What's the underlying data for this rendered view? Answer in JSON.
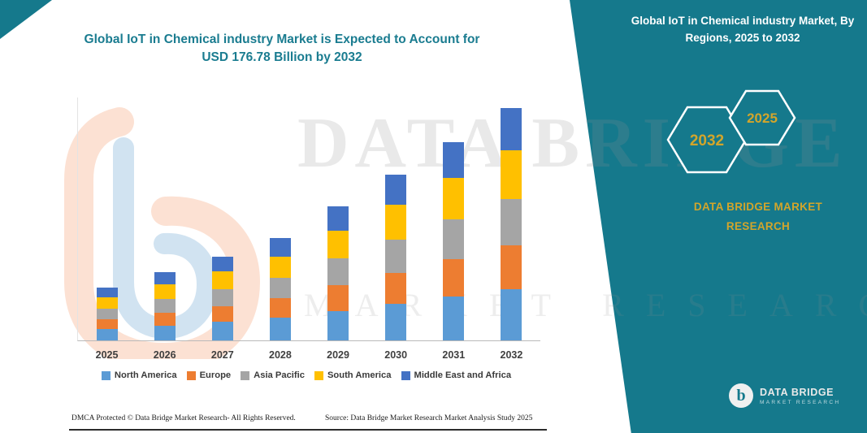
{
  "colors": {
    "teal": "#15798C",
    "gold": "#D2A52B",
    "title_teal": "#1A7C90"
  },
  "main_title": {
    "line1": "Global IoT in Chemical industry Market is Expected to Account for",
    "line2": "USD 176.78 Billion by 2032"
  },
  "right_panel": {
    "title": "Global IoT in Chemical industry Market, By Regions, 2025 to 2032",
    "hexagons": [
      {
        "label": "2032"
      },
      {
        "label": "2025"
      }
    ],
    "brand_line1": "DATA BRIDGE MARKET",
    "brand_line2": "RESEARCH",
    "logo_glyph": "b",
    "logo_name": "DATA BRIDGE",
    "logo_sub": "MARKET RESEARCH"
  },
  "watermark": {
    "line1": "DATA BRIDGE",
    "line2": "MARKET RESEARCH"
  },
  "footer": {
    "left": "DMCA Protected © Data Bridge Market Research-  All Rights Reserved.",
    "source": "Source: Data Bridge Market Research  Market Analysis Study 2025"
  },
  "chart_data": {
    "type": "bar",
    "stacked": true,
    "title": "Global IoT in Chemical industry Market is Expected to Account for USD 176.78 Billion by 2032",
    "unit": "USD Billion",
    "categories": [
      "2025",
      "2026",
      "2027",
      "2028",
      "2029",
      "2030",
      "2031",
      "2032"
    ],
    "series": [
      {
        "name": "North America",
        "color": "#5B9BD5",
        "values": [
          8.8,
          11.4,
          14.1,
          17.2,
          22.4,
          27.7,
          33.2,
          38.9
        ]
      },
      {
        "name": "Europe",
        "color": "#ED7D31",
        "values": [
          7.6,
          9.9,
          12.2,
          14.8,
          19.4,
          23.9,
          28.7,
          33.6
        ]
      },
      {
        "name": "Asia Pacific",
        "color": "#A5A5A5",
        "values": [
          8.0,
          10.4,
          12.8,
          15.6,
          20.4,
          25.2,
          30.2,
          35.4
        ]
      },
      {
        "name": "South America",
        "color": "#FFC000",
        "values": [
          8.4,
          10.9,
          13.4,
          16.4,
          21.4,
          26.5,
          31.7,
          37.1
        ]
      },
      {
        "name": "Middle East and Africa",
        "color": "#4472C4",
        "values": [
          7.2,
          9.4,
          11.5,
          14.0,
          18.4,
          22.7,
          27.2,
          31.8
        ]
      }
    ],
    "totals": [
      40.0,
      52.0,
      64.0,
      78.0,
      102.0,
      126.0,
      151.0,
      176.78
    ],
    "highlight_total_2032": 176.78,
    "ylim": [
      0,
      185
    ],
    "grid": false,
    "legend_position": "bottom"
  }
}
